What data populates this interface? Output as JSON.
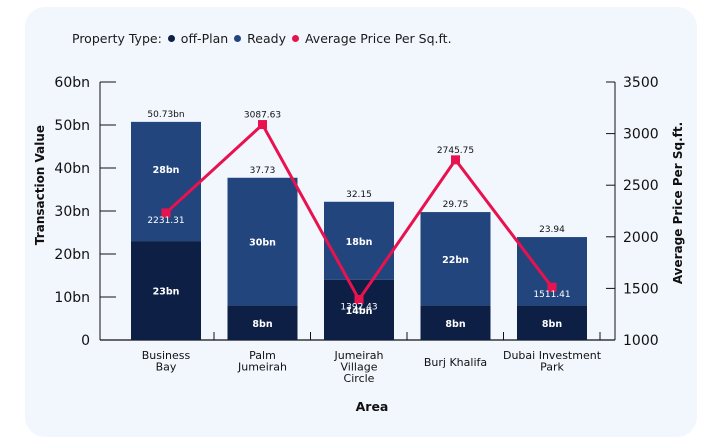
{
  "colors": {
    "offplan": "#0d1f45",
    "ready": "#23457e",
    "line": "#e8124f",
    "background": "#f2f7fe"
  },
  "legend": {
    "prefix": "Property Type:",
    "items": [
      {
        "label": "off-Plan",
        "color": "#0d1f45"
      },
      {
        "label": "Ready",
        "color": "#23457e"
      },
      {
        "label": "Average Price Per Sq.ft.",
        "color": "#e8124f"
      }
    ]
  },
  "chart_data": {
    "type": "bar",
    "subtype": "stacked-bar-with-line",
    "title": "",
    "xlabel": "Area",
    "ylabel": "Transaction Value",
    "y2label": "Average Price Per Sq.ft.",
    "categories": [
      [
        "Business",
        "Bay"
      ],
      [
        "Palm",
        "Jumeirah"
      ],
      [
        "Jumeirah",
        "Village",
        "Circle"
      ],
      [
        "Burj Khalifa"
      ],
      [
        "Dubai Investment",
        "Park"
      ]
    ],
    "series": [
      {
        "name": "off-Plan",
        "axis": "left",
        "values": [
          23,
          8,
          14,
          8,
          8
        ],
        "labels": [
          "23bn",
          "8bn",
          "14bn",
          "8bn",
          "8bn"
        ]
      },
      {
        "name": "Ready",
        "axis": "left",
        "values": [
          28,
          30,
          18,
          22,
          16
        ],
        "labels": [
          "28bn",
          "30bn",
          "18bn",
          "22bn",
          ""
        ]
      },
      {
        "name": "Average Price Per Sq.ft.",
        "axis": "right",
        "type": "line",
        "values": [
          2231.31,
          3087.63,
          1392.43,
          2745.75,
          1511.41
        ],
        "labels": [
          "2231.31",
          "3087.63",
          "1392.43",
          "2745.75",
          "1511.41"
        ]
      }
    ],
    "totals": [
      50.73,
      37.73,
      32.15,
      29.75,
      23.94
    ],
    "total_labels": [
      "50.73bn",
      "37.73",
      "32.15",
      "29.75",
      "23.94"
    ],
    "ylim": [
      0,
      60
    ],
    "yticks": [
      0,
      10,
      20,
      30,
      40,
      50,
      60
    ],
    "ytick_labels": [
      "0",
      "10bn",
      "20bn",
      "30bn",
      "40bn",
      "50bn",
      "60bn"
    ],
    "y2lim": [
      1000,
      3500
    ],
    "y2ticks": [
      1000,
      1500,
      2000,
      2500,
      3000,
      3500
    ],
    "y2tick_labels": [
      "1000",
      "1500",
      "2000",
      "2500",
      "3000",
      "3500"
    ],
    "grid": false,
    "legend_position": "top-left"
  }
}
